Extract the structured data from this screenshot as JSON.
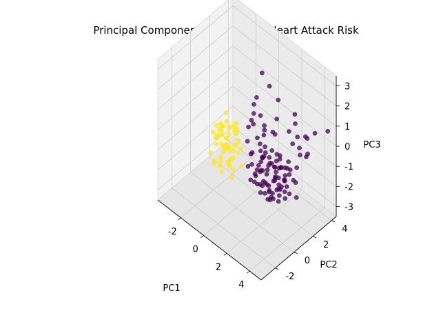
{
  "chart_data": {
    "type": "scatter",
    "projection": "3d",
    "title": "Principal Components Shaded for Heart Attack Risk",
    "xlabel": "PC1",
    "ylabel": "PC2",
    "zlabel": "PC3",
    "xlim": [
      -4,
      5
    ],
    "ylim": [
      -3.5,
      4.5
    ],
    "zlim": [
      -3.5,
      3.5
    ],
    "xticks": [
      "-2",
      "0",
      "2",
      "4"
    ],
    "yticks": [
      "-2",
      "0",
      "2",
      "4"
    ],
    "zticks": [
      "-3",
      "-2",
      "-1",
      "0",
      "1",
      "2",
      "3"
    ],
    "grid": true,
    "colormap": "viridis",
    "colors": {
      "class_0": "#440154",
      "class_1": "#fde725"
    },
    "series": [
      {
        "values": [
          [
            0.2,
            -1.3,
            1.4
          ],
          [
            -0.6,
            -0.9,
            -0.2
          ],
          [
            0.5,
            -0.8,
            0.9
          ],
          [
            0.0,
            -1.7,
            -0.5
          ],
          [
            -0.9,
            -1.3,
            -1.2
          ],
          [
            -0.3,
            -0.4,
            0.5
          ],
          [
            0.4,
            -1.2,
            -0.8
          ],
          [
            -0.5,
            -1.6,
            0.4
          ],
          [
            0.8,
            -0.5,
            0.0
          ],
          [
            -0.1,
            -0.7,
            -1.1
          ],
          [
            0.3,
            -1.9,
            1.0
          ],
          [
            -1.0,
            -0.6,
            0.2
          ],
          [
            0.6,
            -1.4,
            -0.3
          ],
          [
            -0.4,
            -1.1,
            0.8
          ],
          [
            0.9,
            -0.9,
            0.6
          ],
          [
            -0.2,
            -1.5,
            -0.9
          ],
          [
            0.1,
            -0.2,
            0.3
          ],
          [
            -0.8,
            -1.8,
            -0.4
          ],
          [
            0.7,
            -1.1,
            1.3
          ],
          [
            -0.6,
            -0.3,
            -0.7
          ],
          [
            0.2,
            -0.6,
            -1.3
          ],
          [
            -0.1,
            -1.2,
            0.0
          ],
          [
            0.5,
            -1.6,
            0.5
          ],
          [
            -0.7,
            -0.8,
            0.7
          ],
          [
            0.4,
            -0.3,
            -0.5
          ],
          [
            -0.3,
            -1.0,
            -0.2
          ],
          [
            0.0,
            -1.4,
            1.1
          ],
          [
            -0.9,
            -1.0,
            0.1
          ],
          [
            0.3,
            -0.9,
            -0.6
          ],
          [
            0.8,
            -1.3,
            0.2
          ],
          [
            -0.5,
            -0.5,
            1.2
          ],
          [
            0.1,
            -1.7,
            -1.0
          ],
          [
            0.6,
            -0.7,
            0.8
          ],
          [
            -0.2,
            -0.9,
            -0.3
          ],
          [
            0.2,
            -0.2,
            0.6
          ],
          [
            -0.4,
            -1.9,
            -0.6
          ],
          [
            0.7,
            -1.8,
            -0.2
          ],
          [
            -0.8,
            -0.4,
            -0.9
          ],
          [
            0.0,
            -1.1,
            0.4
          ],
          [
            0.4,
            -1.0,
            -1.4
          ],
          [
            -0.6,
            -1.4,
            0.9
          ],
          [
            0.3,
            -0.4,
            -0.1
          ],
          [
            -0.1,
            -1.6,
            0.7
          ],
          [
            0.5,
            -1.2,
            -0.4
          ],
          [
            -0.3,
            -0.7,
            0.1
          ],
          [
            -0.7,
            -0.7,
            0.3
          ],
          [
            -0.2,
            -0.5,
            -0.4
          ],
          [
            0.6,
            -1.0,
            0.3
          ],
          [
            -0.4,
            -1.2,
            -0.7
          ],
          [
            0.1,
            -0.8,
            0.9
          ],
          [
            -1.1,
            -0.8,
            -0.5
          ],
          [
            0.3,
            -1.5,
            0.2
          ],
          [
            -0.5,
            -0.2,
            0.0
          ],
          [
            0.9,
            -0.6,
            -0.8
          ],
          [
            -0.2,
            -1.8,
            0.6
          ],
          [
            0.0,
            -0.3,
            -0.9
          ],
          [
            -0.8,
            -1.5,
            0.5
          ],
          [
            0.4,
            -0.5,
            1.1
          ],
          [
            -0.3,
            -1.4,
            -1.0
          ],
          [
            0.2,
            -1.0,
            -0.2
          ]
        ],
        "class": 1
      },
      {
        "values": [
          [
            1.8,
            0.4,
            -1.0
          ],
          [
            2.4,
            1.0,
            -1.5
          ],
          [
            1.5,
            -0.2,
            -0.6
          ],
          [
            2.9,
            0.6,
            -0.9
          ],
          [
            2.1,
            1.5,
            -1.8
          ],
          [
            1.2,
            0.2,
            -0.3
          ],
          [
            3.2,
            1.2,
            -1.2
          ],
          [
            2.6,
            0.1,
            -0.5
          ],
          [
            1.9,
            1.1,
            -2.0
          ],
          [
            3.5,
            0.9,
            -0.7
          ],
          [
            1.4,
            0.8,
            -1.4
          ],
          [
            2.8,
            1.7,
            -1.6
          ],
          [
            2.2,
            -0.1,
            -0.2
          ],
          [
            3.8,
            1.4,
            -1.0
          ],
          [
            1.7,
            1.4,
            -0.8
          ],
          [
            2.5,
            0.5,
            -2.2
          ],
          [
            3.0,
            -0.2,
            -1.3
          ],
          [
            1.1,
            0.7,
            -1.7
          ],
          [
            2.3,
            1.8,
            -0.6
          ],
          [
            3.4,
            0.3,
            -1.8
          ],
          [
            1.6,
            0.0,
            -1.1
          ],
          [
            2.7,
            1.3,
            -0.4
          ],
          [
            2.0,
            0.6,
            -1.6
          ],
          [
            3.6,
            1.9,
            -1.4
          ],
          [
            1.3,
            1.2,
            -0.9
          ],
          [
            2.9,
            0.2,
            -0.1
          ],
          [
            2.2,
            1.0,
            -2.4
          ],
          [
            3.1,
            1.6,
            -0.8
          ],
          [
            1.8,
            -0.3,
            -1.3
          ],
          [
            2.6,
            1.1,
            -1.9
          ],
          [
            1.0,
            0.3,
            -0.5
          ],
          [
            3.3,
            0.7,
            -0.3
          ],
          [
            2.4,
            1.6,
            -1.1
          ],
          [
            1.5,
            0.9,
            -2.1
          ],
          [
            2.8,
            0.4,
            -1.7
          ],
          [
            2.1,
            0.2,
            -0.8
          ],
          [
            3.7,
            1.1,
            -1.6
          ],
          [
            1.9,
            1.7,
            -1.3
          ],
          [
            2.5,
            -0.2,
            -1.0
          ],
          [
            3.0,
            1.5,
            -2.3
          ],
          [
            1.4,
            0.5,
            -1.9
          ],
          [
            2.7,
            0.8,
            -0.6
          ],
          [
            2.3,
            1.3,
            -1.5
          ],
          [
            3.5,
            0.5,
            -1.1
          ],
          [
            1.7,
            1.0,
            -0.4
          ],
          [
            2.0,
            0.1,
            -1.9
          ],
          [
            3.2,
            1.8,
            -0.9
          ],
          [
            1.6,
            1.6,
            -1.2
          ],
          [
            2.9,
            1.0,
            -2.0
          ],
          [
            2.2,
            0.7,
            -0.7
          ],
          [
            1.3,
            -0.1,
            -1.5
          ],
          [
            3.6,
            0.1,
            -0.8
          ],
          [
            2.6,
            1.9,
            -1.7
          ],
          [
            1.8,
            0.8,
            -2.3
          ],
          [
            3.1,
            0.4,
            -0.5
          ],
          [
            2.4,
            0.3,
            -1.4
          ],
          [
            1.2,
            1.3,
            -1.0
          ],
          [
            3.9,
            1.6,
            -1.9
          ],
          [
            2.1,
            1.2,
            -0.2
          ],
          [
            2.8,
            -0.1,
            -1.8
          ],
          [
            1.5,
            1.1,
            -0.7
          ],
          [
            3.3,
            1.3,
            -1.5
          ],
          [
            2.0,
            1.8,
            -1.0
          ],
          [
            2.7,
            0.6,
            -2.1
          ],
          [
            1.9,
            0.4,
            -0.3
          ],
          [
            3.4,
            1.0,
            -0.4
          ],
          [
            2.3,
            -0.3,
            -1.2
          ],
          [
            1.1,
            1.0,
            -1.3
          ],
          [
            2.5,
            1.4,
            -2.0
          ],
          [
            3.0,
            0.8,
            -1.0
          ],
          [
            1.7,
            0.1,
            -0.9
          ],
          [
            3.7,
            0.6,
            -1.3
          ],
          [
            2.2,
            1.6,
            -0.5
          ],
          [
            1.4,
            1.5,
            -1.8
          ],
          [
            2.9,
            1.2,
            -0.7
          ],
          [
            1.0,
            0.0,
            -1.0
          ],
          [
            2.6,
            0.3,
            -1.6
          ],
          [
            3.2,
            1.7,
            -1.1
          ],
          [
            1.6,
            0.6,
            -0.2
          ],
          [
            2.4,
            1.7,
            -2.2
          ],
          [
            3.0,
            2.3,
            0.1
          ],
          [
            3.4,
            2.6,
            -0.4
          ],
          [
            2.8,
            2.1,
            -0.8
          ],
          [
            3.9,
            2.8,
            -0.2
          ],
          [
            3.6,
            2.0,
            -0.7
          ],
          [
            4.1,
            2.4,
            -0.1
          ],
          [
            4.2,
            3.2,
            0.8
          ],
          [
            3.7,
            3.0,
            0.4
          ],
          [
            2.9,
            2.7,
            0.9
          ],
          [
            3.3,
            3.3,
            0.2
          ],
          [
            5.0,
            3.6,
            1.1
          ],
          [
            2.6,
            2.4,
            0.5
          ],
          [
            3.1,
            2.9,
            -0.3
          ],
          [
            3.5,
            2.2,
            0.7
          ],
          [
            2.7,
            2.9,
            1.2
          ],
          [
            0.8,
            0.8,
            0.7
          ],
          [
            1.2,
            1.5,
            0.3
          ],
          [
            1.6,
            1.0,
            0.9
          ],
          [
            0.9,
            1.8,
            -0.2
          ],
          [
            1.4,
            0.5,
            0.4
          ],
          [
            2.0,
            1.4,
            0.6
          ],
          [
            1.1,
            1.2,
            1.1
          ],
          [
            0.7,
            0.3,
            0.0
          ],
          [
            1.8,
            1.9,
            0.2
          ],
          [
            1.3,
            0.9,
            -0.1
          ],
          [
            0.5,
            2.1,
            2.6
          ],
          [
            0.9,
            2.4,
            2.0
          ],
          [
            1.5,
            2.6,
            1.5
          ],
          [
            0.2,
            1.6,
            1.1
          ],
          [
            1.0,
            0.6,
            1.4
          ],
          [
            0.4,
            1.1,
            0.6
          ],
          [
            1.7,
            2.2,
            0.8
          ],
          [
            0.6,
            1.4,
            1.7
          ],
          [
            1.9,
            0.7,
            0.1
          ],
          [
            0.3,
            0.9,
            0.3
          ]
        ],
        "class": 0
      }
    ]
  }
}
